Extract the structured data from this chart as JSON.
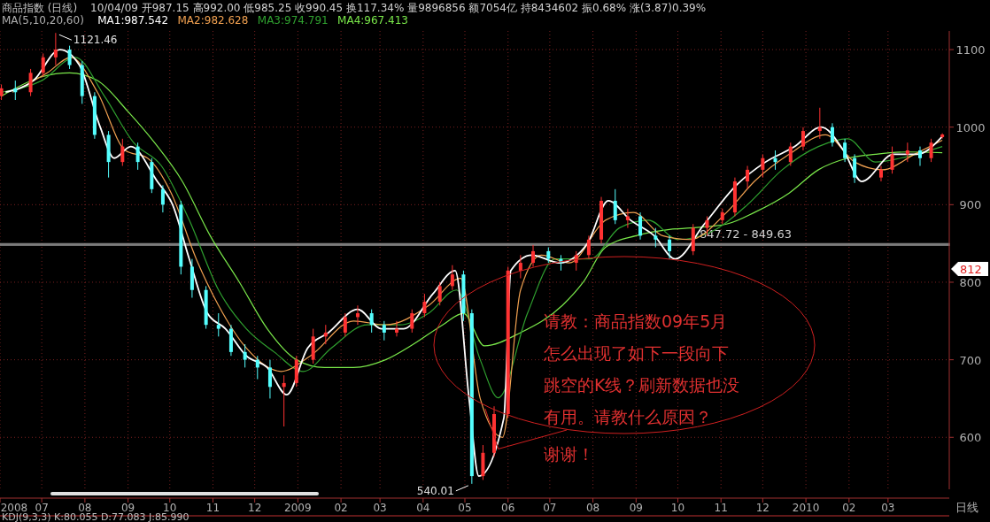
{
  "chart_data": {
    "type": "candlestick",
    "title": "商品指数 (日线)",
    "subtitle": "10/04/09 开987.15 高992.00 低985.25 收990.45 换117.34% 量9896856 额7054亿 持8434602 振0.68% 涨(3.87)0.39%",
    "legend_title": "MA(5,10,20,60)",
    "legend": "top left",
    "xlabel": "日线",
    "grid": true,
    "xlim": [
      "2008-06-01",
      "2010-04-14"
    ],
    "xticks": [
      {
        "value": "2008-06-01",
        "label": "2008"
      },
      {
        "value": "2008-07-01",
        "label": "07"
      },
      {
        "value": "2008-08-01",
        "label": "08"
      },
      {
        "value": "2008-09-01",
        "label": "09"
      },
      {
        "value": "2008-10-01",
        "label": "10"
      },
      {
        "value": "2008-11-01",
        "label": "11"
      },
      {
        "value": "2008-12-01",
        "label": "12"
      },
      {
        "value": "2009-01-01",
        "label": "2009"
      },
      {
        "value": "2009-02-01",
        "label": "02"
      },
      {
        "value": "2009-03-01",
        "label": "03"
      },
      {
        "value": "2009-04-01",
        "label": "04"
      },
      {
        "value": "2009-05-01",
        "label": "05"
      },
      {
        "value": "2009-06-01",
        "label": "06"
      },
      {
        "value": "2009-07-01",
        "label": "07"
      },
      {
        "value": "2009-08-01",
        "label": "08"
      },
      {
        "value": "2009-09-01",
        "label": "09"
      },
      {
        "value": "2009-10-01",
        "label": "10"
      },
      {
        "value": "2009-11-01",
        "label": "11"
      },
      {
        "value": "2009-12-01",
        "label": "12"
      },
      {
        "value": "2010-01-01",
        "label": "2010"
      },
      {
        "value": "2010-02-01",
        "label": "02"
      },
      {
        "value": "2010-03-01",
        "label": "03"
      }
    ],
    "ylim": [
      533,
      1124
    ],
    "yticks": [
      600,
      700,
      800,
      900,
      1000,
      1100
    ],
    "x": [
      "2008-06-02",
      "2008-06-12",
      "2008-06-23",
      "2008-07-02",
      "2008-07-11",
      "2008-07-21",
      "2008-07-30",
      "2008-08-08",
      "2008-08-18",
      "2008-08-28",
      "2008-09-08",
      "2008-09-18",
      "2008-09-26",
      "2008-10-09",
      "2008-10-17",
      "2008-10-27",
      "2008-11-05",
      "2008-11-14",
      "2008-11-24",
      "2008-12-03",
      "2008-12-12",
      "2008-12-22",
      "2008-12-31",
      "2009-01-12",
      "2009-01-21",
      "2009-02-04",
      "2009-02-13",
      "2009-02-23",
      "2009-03-04",
      "2009-03-13",
      "2009-03-24",
      "2009-04-02",
      "2009-04-13",
      "2009-04-22",
      "2009-04-30",
      "2009-05-06",
      "2009-05-14",
      "2009-05-22",
      "2009-06-01",
      "2009-06-10",
      "2009-06-19",
      "2009-06-30",
      "2009-07-09",
      "2009-07-20",
      "2009-07-29",
      "2009-08-07",
      "2009-08-17",
      "2009-08-26",
      "2009-09-04",
      "2009-09-15",
      "2009-09-25",
      "2009-10-12",
      "2009-10-22",
      "2009-11-02",
      "2009-11-11",
      "2009-11-20",
      "2009-12-01",
      "2009-12-10",
      "2009-12-21",
      "2009-12-30",
      "2010-01-11",
      "2010-01-20",
      "2010-01-29",
      "2010-02-05",
      "2010-02-24",
      "2010-03-04",
      "2010-03-15",
      "2010-03-24",
      "2010-04-01",
      "2010-04-09"
    ],
    "ohlc": [
      [
        1040,
        1055,
        1035,
        1050
      ],
      [
        1050,
        1060,
        1035,
        1045
      ],
      [
        1045,
        1075,
        1040,
        1070
      ],
      [
        1070,
        1095,
        1065,
        1090
      ],
      [
        1090,
        1121.46,
        1080,
        1100
      ],
      [
        1100,
        1105,
        1075,
        1080
      ],
      [
        1080,
        1085,
        1030,
        1040
      ],
      [
        1040,
        1045,
        985,
        990
      ],
      [
        990,
        995,
        935,
        955
      ],
      [
        955,
        985,
        950,
        975
      ],
      [
        975,
        980,
        945,
        955
      ],
      [
        955,
        960,
        915,
        920
      ],
      [
        920,
        925,
        890,
        900
      ],
      [
        900,
        905,
        810,
        820
      ],
      [
        820,
        830,
        780,
        790
      ],
      [
        790,
        795,
        740,
        745
      ],
      [
        745,
        760,
        730,
        740
      ],
      [
        740,
        745,
        705,
        710
      ],
      [
        710,
        720,
        690,
        700
      ],
      [
        700,
        705,
        675,
        690
      ],
      [
        690,
        700,
        650,
        665
      ],
      [
        665,
        680,
        614,
        670
      ],
      [
        670,
        705,
        665,
        700
      ],
      [
        700,
        740,
        695,
        730
      ],
      [
        730,
        745,
        720,
        735
      ],
      [
        735,
        760,
        730,
        755
      ],
      [
        755,
        770,
        745,
        760
      ],
      [
        760,
        765,
        735,
        745
      ],
      [
        745,
        750,
        725,
        735
      ],
      [
        735,
        750,
        730,
        740
      ],
      [
        740,
        765,
        735,
        760
      ],
      [
        760,
        785,
        755,
        775
      ],
      [
        775,
        800,
        770,
        795
      ],
      [
        795,
        822,
        790,
        810
      ],
      [
        810,
        815,
        750,
        760
      ],
      [
        760,
        765,
        540.01,
        550
      ],
      [
        550,
        590,
        545,
        580
      ],
      [
        580,
        640,
        575,
        630
      ],
      [
        630,
        820,
        625,
        815
      ],
      [
        815,
        835,
        805,
        825
      ],
      [
        825,
        848,
        820,
        840
      ],
      [
        840,
        845,
        825,
        830
      ],
      [
        830,
        835,
        815,
        825
      ],
      [
        825,
        840,
        815,
        835
      ],
      [
        835,
        860,
        830,
        855
      ],
      [
        855,
        910,
        850,
        905
      ],
      [
        905,
        920,
        875,
        880
      ],
      [
        880,
        895,
        870,
        885
      ],
      [
        885,
        890,
        855,
        860
      ],
      [
        860,
        870,
        845,
        855
      ],
      [
        855,
        860,
        830,
        840
      ],
      [
        840,
        875,
        835,
        870
      ],
      [
        870,
        885,
        860,
        880
      ],
      [
        880,
        895,
        875,
        890
      ],
      [
        890,
        935,
        885,
        930
      ],
      [
        930,
        950,
        920,
        945
      ],
      [
        945,
        965,
        935,
        960
      ],
      [
        960,
        970,
        945,
        955
      ],
      [
        955,
        980,
        950,
        975
      ],
      [
        975,
        1000,
        970,
        995
      ],
      [
        995,
        1025,
        985,
        1000
      ],
      [
        1000,
        1005,
        975,
        980
      ],
      [
        980,
        985,
        955,
        960
      ],
      [
        960,
        965,
        928,
        935
      ],
      [
        935,
        950,
        930,
        945
      ],
      [
        945,
        975,
        940,
        965
      ],
      [
        965,
        980,
        955,
        970
      ],
      [
        970,
        975,
        950,
        960
      ],
      [
        960,
        985,
        955,
        980
      ],
      [
        987.15,
        992,
        985.25,
        990.45
      ]
    ],
    "colors": [
      "#ff3232",
      "#54ffff",
      "#ff3232",
      "#ff3232",
      "#ff3232",
      "#54ffff",
      "#54ffff",
      "#54ffff",
      "#54ffff",
      "#ff3232",
      "#54ffff",
      "#54ffff",
      "#54ffff",
      "#54ffff",
      "#54ffff",
      "#54ffff",
      "#54ffff",
      "#54ffff",
      "#54ffff",
      "#54ffff",
      "#54ffff",
      "#ff3232",
      "#ff3232",
      "#ff3232",
      "#ff3232",
      "#ff3232",
      "#ff3232",
      "#54ffff",
      "#54ffff",
      "#ff3232",
      "#ff3232",
      "#ff3232",
      "#ff3232",
      "#ff3232",
      "#54ffff",
      "#54ffff",
      "#ff3232",
      "#ff3232",
      "#ff3232",
      "#ff3232",
      "#ff3232",
      "#54ffff",
      "#54ffff",
      "#ff3232",
      "#ff3232",
      "#ff3232",
      "#54ffff",
      "#ff3232",
      "#54ffff",
      "#54ffff",
      "#54ffff",
      "#ff3232",
      "#ff3232",
      "#ff3232",
      "#ff3232",
      "#ff3232",
      "#ff3232",
      "#54ffff",
      "#ff3232",
      "#ff3232",
      "#ff3232",
      "#54ffff",
      "#54ffff",
      "#54ffff",
      "#ff3232",
      "#ff3232",
      "#ff3232",
      "#54ffff",
      "#ff3232",
      "#ff3232"
    ],
    "series": [
      {
        "type": "line",
        "name": "MA1:987.542",
        "color": "#ffffff",
        "x": [
          "2008-06-05",
          "2008-06-25",
          "2008-07-14",
          "2008-07-28",
          "2008-08-12",
          "2008-08-22",
          "2008-09-03",
          "2008-09-22",
          "2008-10-03",
          "2008-10-15",
          "2008-10-28",
          "2008-11-10",
          "2008-11-25",
          "2008-12-10",
          "2008-12-24",
          "2009-01-08",
          "2009-01-23",
          "2009-02-13",
          "2009-03-02",
          "2009-03-18",
          "2009-04-08",
          "2009-04-24",
          "2009-05-04",
          "2009-05-11",
          "2009-05-22",
          "2009-05-29",
          "2009-06-03",
          "2009-06-18",
          "2009-07-08",
          "2009-07-28",
          "2009-08-12",
          "2009-08-28",
          "2009-09-14",
          "2009-09-29",
          "2009-10-20",
          "2009-11-12",
          "2009-12-03",
          "2009-12-24",
          "2010-01-12",
          "2010-01-28",
          "2010-02-10",
          "2010-03-05",
          "2010-03-22",
          "2010-04-09"
        ],
        "values": [
          1045,
          1060,
          1100,
          1080,
          1000,
          960,
          975,
          930,
          900,
          830,
          760,
          740,
          705,
          690,
          655,
          715,
          735,
          765,
          740,
          740,
          785,
          815,
          650,
          550,
          null,
          625,
          815,
          835,
          825,
          850,
          905,
          880,
          860,
          830,
          875,
          925,
          955,
          975,
          1000,
          970,
          930,
          965,
          965,
          988
        ]
      },
      {
        "type": "line",
        "name": "MA2:982.628",
        "color": "#f0a050",
        "x": [
          "2008-06-10",
          "2008-07-05",
          "2008-07-22",
          "2008-08-10",
          "2008-08-30",
          "2008-09-15",
          "2008-10-02",
          "2008-10-20",
          "2008-11-05",
          "2008-11-25",
          "2008-12-20",
          "2009-01-10",
          "2009-02-10",
          "2009-03-05",
          "2009-04-05",
          "2009-04-28",
          "2009-05-12",
          "2009-05-28",
          "2009-06-10",
          "2009-06-25",
          "2009-07-15",
          "2009-08-10",
          "2009-08-30",
          "2009-09-20",
          "2009-10-10",
          "2009-11-05",
          "2009-11-25",
          "2009-12-20",
          "2010-01-15",
          "2010-02-05",
          "2010-02-25",
          "2010-03-20",
          "2010-04-09"
        ],
        "values": [
          1045,
          1070,
          1090,
          1045,
          970,
          960,
          915,
          830,
          770,
          715,
          685,
          705,
          750,
          745,
          770,
          805,
          650,
          600,
          790,
          835,
          825,
          880,
          890,
          860,
          855,
          890,
          930,
          965,
          990,
          955,
          945,
          965,
          983
        ]
      },
      {
        "type": "line",
        "name": "MA3:974.791",
        "color": "#2fa02f",
        "x": [
          "2008-06-02",
          "2008-07-01",
          "2008-07-25",
          "2008-08-15",
          "2008-09-05",
          "2008-09-25",
          "2008-10-15",
          "2008-11-05",
          "2008-11-25",
          "2008-12-15",
          "2009-01-05",
          "2009-01-25",
          "2009-02-20",
          "2009-03-15",
          "2009-04-05",
          "2009-04-25",
          "2009-05-12",
          "2009-05-25",
          "2009-06-15",
          "2009-07-05",
          "2009-07-30",
          "2009-08-20",
          "2009-09-10",
          "2009-10-01",
          "2009-10-25",
          "2009-11-20",
          "2009-12-15",
          "2010-01-10",
          "2010-01-31",
          "2010-02-20",
          "2010-03-10",
          "2010-04-09"
        ],
        "values": [
          1045,
          1060,
          1090,
          1040,
          980,
          950,
          880,
          790,
          740,
          710,
          685,
          715,
          745,
          745,
          760,
          790,
          700,
          651,
          760,
          830,
          830,
          870,
          880,
          855,
          865,
          900,
          945,
          975,
          985,
          955,
          960,
          975
        ]
      },
      {
        "type": "line",
        "name": "MA4:967.413",
        "color": "#7ae84a",
        "x": [
          "2008-06-02",
          "2008-07-01",
          "2008-07-21",
          "2008-08-10",
          "2008-09-01",
          "2008-09-20",
          "2008-10-10",
          "2008-10-30",
          "2008-11-20",
          "2008-12-10",
          "2008-12-31",
          "2009-01-20",
          "2009-02-10",
          "2009-03-05",
          "2009-03-25",
          "2009-04-15",
          "2009-04-30",
          "2009-05-15",
          "2009-06-10",
          "2009-07-10",
          "2009-07-25",
          "2009-08-10",
          "2009-09-01",
          "2009-09-25",
          "2009-10-10",
          "2009-11-05",
          "2009-11-25",
          "2009-12-20",
          "2010-01-10",
          "2010-01-31",
          "2010-02-20",
          "2010-03-15",
          "2010-04-09"
        ],
        "values": [
          1040,
          1065,
          1070,
          1060,
          1020,
          980,
          930,
          860,
          800,
          740,
          700,
          690,
          690,
          700,
          720,
          745,
          760,
          718,
          735,
          770,
          800,
          845,
          860,
          868,
          870,
          875,
          890,
          915,
          945,
          960,
          965,
          968,
          967
        ]
      }
    ],
    "bands": [
      {
        "axis": "y",
        "from": 847.72,
        "to": 849.63,
        "label": "847.72 - 849.63",
        "color": "#9a9a9a"
      }
    ],
    "annotations": [
      {
        "text": "1121.46",
        "x": "2008-07-11",
        "y": 1121.46
      },
      {
        "text": "540.01",
        "x": "2009-05-06",
        "y": 540.01
      },
      "812",
      {
        "text": "请教：商品指数09年5月怎么出现了如下一段向下跳空的K线？刷新数据也没有用。请教什么原因？谢谢！",
        "x": "2009-05-25",
        "y": 585
      },
      "KDJ(9,3,3) K:80.055 D:77.083 J:85.990"
    ]
  }
}
